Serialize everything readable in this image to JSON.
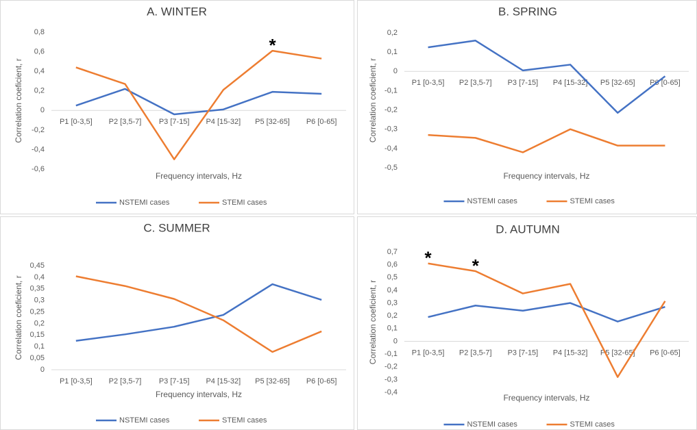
{
  "chart_data": [
    {
      "type": "line",
      "title": "A. WINTER",
      "xlabel": "Frequency intervals, Hz",
      "ylabel": "Correlation coeficient, r",
      "categories": [
        "P1 [0-3,5]",
        "P2 [3,5-7]",
        "P3 [7-15]",
        "P4 [15-32]",
        "P5 [32-65]",
        "P6 [0-65]"
      ],
      "series": [
        {
          "name": "NSTEMI cases",
          "color": "#4472c4",
          "values": [
            0.05,
            0.22,
            -0.04,
            0.01,
            0.19,
            0.17
          ]
        },
        {
          "name": "STEMI cases",
          "color": "#ed7d31",
          "values": [
            0.44,
            0.27,
            -0.5,
            0.21,
            0.61,
            0.53
          ]
        }
      ],
      "ylim": [
        -0.6,
        0.8
      ],
      "yticks": [
        {
          "value": -0.6,
          "label": "-0,6"
        },
        {
          "value": -0.4,
          "label": "-0,4"
        },
        {
          "value": -0.2,
          "label": "-0,2"
        },
        0,
        {
          "value": 0.2,
          "label": "0,2"
        },
        {
          "value": 0.4,
          "label": "0,4"
        },
        {
          "value": 0.6,
          "label": "0,6"
        },
        {
          "value": 0.8,
          "label": "0,8"
        }
      ],
      "annotations": [
        {
          "text": "*",
          "category": "P5 [32-65]",
          "series": "STEMI cases"
        }
      ]
    },
    {
      "type": "line",
      "title": "B. SPRING",
      "xlabel": "Frequency intervals, Hz",
      "ylabel": "Correlation coeficient, r",
      "categories": [
        "P1 [0-3,5]",
        "P2 [3,5-7]",
        "P3 [7-15]",
        "P4 [15-32]",
        "P5 [32-65]",
        "P6 [0-65]"
      ],
      "series": [
        {
          "name": "NSTEMI cases",
          "color": "#4472c4",
          "values": [
            0.125,
            0.16,
            0.005,
            0.035,
            -0.215,
            -0.025
          ]
        },
        {
          "name": "STEMI cases",
          "color": "#ed7d31",
          "values": [
            -0.33,
            -0.345,
            -0.42,
            -0.3,
            -0.385,
            -0.385
          ]
        }
      ],
      "ylim": [
        -0.5,
        0.2
      ],
      "yticks": [
        {
          "value": -0.5,
          "label": "-0,5"
        },
        {
          "value": -0.4,
          "label": "-0,4"
        },
        {
          "value": -0.3,
          "label": "-0,3"
        },
        {
          "value": -0.2,
          "label": "-0,2"
        },
        {
          "value": -0.1,
          "label": "-0,1"
        },
        0,
        {
          "value": 0.1,
          "label": "0,1"
        },
        {
          "value": 0.2,
          "label": "0,2"
        }
      ]
    },
    {
      "type": "line",
      "title": "C. SUMMER",
      "xlabel": "Frequency intervals, Hz",
      "ylabel": "Correlation coeficient, r",
      "categories": [
        "P1 [0-3,5]",
        "P2 [3,5-7]",
        "P3 [7-15]",
        "P4 [15-32]",
        "P5 [32-65]",
        "P6 [0-65]"
      ],
      "series": [
        {
          "name": "NSTEMI cases",
          "color": "#4472c4",
          "values": [
            0.125,
            0.153,
            0.186,
            0.237,
            0.37,
            0.302
          ]
        },
        {
          "name": "STEMI cases",
          "color": "#ed7d31",
          "values": [
            0.404,
            0.362,
            0.306,
            0.214,
            0.077,
            0.166
          ]
        }
      ],
      "ylim": [
        0,
        0.45
      ],
      "yticks": [
        0,
        {
          "value": 0.05,
          "label": "0,05"
        },
        {
          "value": 0.1,
          "label": "0,1"
        },
        {
          "value": 0.15,
          "label": "0,15"
        },
        {
          "value": 0.2,
          "label": "0,2"
        },
        {
          "value": 0.25,
          "label": "0,25"
        },
        {
          "value": 0.3,
          "label": "0,3"
        },
        {
          "value": 0.35,
          "label": "0,35"
        },
        {
          "value": 0.4,
          "label": "0,4"
        },
        {
          "value": 0.45,
          "label": "0,45"
        }
      ]
    },
    {
      "type": "line",
      "title": "D. AUTUMN",
      "xlabel": "Frequency intervals, Hz",
      "ylabel": "Correlation coeficient, r",
      "categories": [
        "P1 [0-3,5]",
        "P2 [3,5-7]",
        "P3 [7-15]",
        "P4 [15-32]",
        "P5 [32-65]",
        "P6 [0-65]"
      ],
      "series": [
        {
          "name": "NSTEMI cases",
          "color": "#4472c4",
          "values": [
            0.19,
            0.28,
            0.24,
            0.3,
            0.155,
            0.27
          ]
        },
        {
          "name": "STEMI cases",
          "color": "#ed7d31",
          "values": [
            0.61,
            0.55,
            0.375,
            0.45,
            -0.28,
            0.315
          ]
        }
      ],
      "ylim": [
        -0.4,
        0.7
      ],
      "yticks": [
        {
          "value": -0.4,
          "label": "-0,4"
        },
        {
          "value": -0.3,
          "label": "-0,3"
        },
        {
          "value": -0.2,
          "label": "-0,2"
        },
        {
          "value": -0.1,
          "label": "-0,1"
        },
        0,
        {
          "value": 0.1,
          "label": "0,1"
        },
        {
          "value": 0.2,
          "label": "0,2"
        },
        {
          "value": 0.3,
          "label": "0,3"
        },
        {
          "value": 0.4,
          "label": "0,4"
        },
        {
          "value": 0.5,
          "label": "0,5"
        },
        {
          "value": 0.6,
          "label": "0,6"
        },
        {
          "value": 0.7,
          "label": "0,7"
        }
      ],
      "annotations": [
        {
          "text": "*",
          "category": "P1 [0-3,5]",
          "series": "STEMI cases"
        },
        {
          "text": "*",
          "category": "P2 [3,5-7]",
          "series": "STEMI cases"
        }
      ]
    }
  ]
}
